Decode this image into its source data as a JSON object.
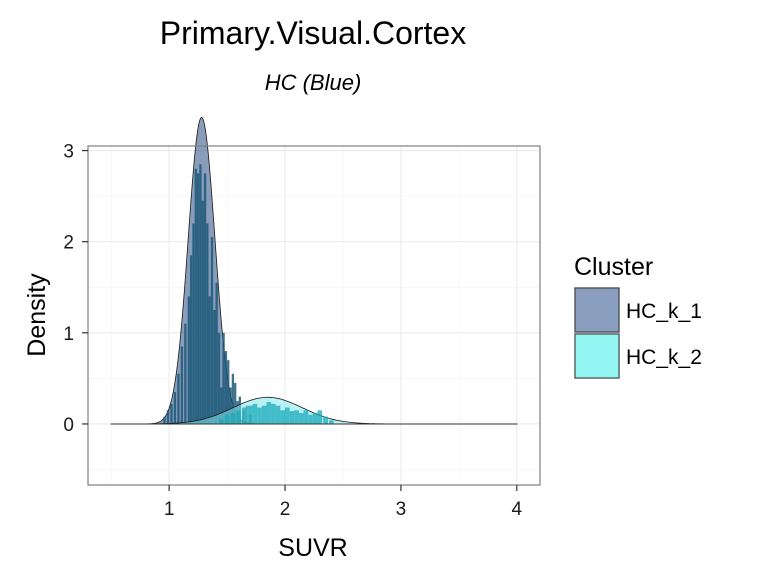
{
  "chart_data": {
    "type": "histogram_density",
    "title": "Primary.Visual.Cortex",
    "subtitle": "HC (Blue)",
    "xlabel": "SUVR",
    "ylabel": "Density",
    "xlim": [
      0.3,
      4.2
    ],
    "ylim": [
      -0.67,
      3.05
    ],
    "x_ticks": [
      1,
      2,
      3,
      4
    ],
    "y_ticks": [
      0,
      1,
      2,
      3
    ],
    "grid": true,
    "legend": {
      "title": "Cluster",
      "position": "right",
      "entries": [
        {
          "name": "HC_k_1",
          "color": "#8a9ebf"
        },
        {
          "name": "HC_k_2",
          "color": "#93f5f2"
        }
      ]
    },
    "colors": {
      "k1_bar": "#1c5978",
      "k1_density_fill": "#3a5a8a",
      "k2_bar": "#1aa9b8",
      "k2_density_fill": "#7ee8ec",
      "panel_border": "#7f7f7f",
      "grid": "#ebebeb"
    },
    "series": [
      {
        "name": "HC_k_1",
        "density": {
          "mean": 1.28,
          "sd": 0.115,
          "weight": 0.97
        },
        "histogram": [
          {
            "x": 0.96,
            "y": 0.08
          },
          {
            "x": 0.99,
            "y": 0.15
          },
          {
            "x": 1.02,
            "y": 0.22
          },
          {
            "x": 1.05,
            "y": 0.35
          },
          {
            "x": 1.08,
            "y": 0.55
          },
          {
            "x": 1.11,
            "y": 0.85
          },
          {
            "x": 1.14,
            "y": 1.1
          },
          {
            "x": 1.17,
            "y": 1.4
          },
          {
            "x": 1.19,
            "y": 1.85
          },
          {
            "x": 1.21,
            "y": 2.2
          },
          {
            "x": 1.23,
            "y": 2.8
          },
          {
            "x": 1.25,
            "y": 2.75
          },
          {
            "x": 1.27,
            "y": 2.85
          },
          {
            "x": 1.29,
            "y": 2.45
          },
          {
            "x": 1.31,
            "y": 2.75
          },
          {
            "x": 1.33,
            "y": 2.2
          },
          {
            "x": 1.35,
            "y": 1.4
          },
          {
            "x": 1.37,
            "y": 2.05
          },
          {
            "x": 1.39,
            "y": 1.25
          },
          {
            "x": 1.41,
            "y": 1.55
          },
          {
            "x": 1.43,
            "y": 1.0
          },
          {
            "x": 1.45,
            "y": 0.4
          },
          {
            "x": 1.47,
            "y": 1.0
          },
          {
            "x": 1.49,
            "y": 0.8
          },
          {
            "x": 1.51,
            "y": 0.7
          },
          {
            "x": 1.53,
            "y": 0.4
          },
          {
            "x": 1.55,
            "y": 0.55
          },
          {
            "x": 1.57,
            "y": 0.45
          },
          {
            "x": 1.59,
            "y": 0.25
          },
          {
            "x": 1.61,
            "y": 0.3
          },
          {
            "x": 1.64,
            "y": 0.15
          },
          {
            "x": 1.67,
            "y": 0.2
          },
          {
            "x": 1.7,
            "y": 0.1
          }
        ]
      },
      {
        "name": "HC_k_2",
        "density": {
          "mean": 1.85,
          "sd": 0.3,
          "weight": 0.22
        },
        "histogram": [
          {
            "x": 1.45,
            "y": 0.05
          },
          {
            "x": 1.5,
            "y": 0.1
          },
          {
            "x": 1.55,
            "y": 0.12
          },
          {
            "x": 1.6,
            "y": 0.15
          },
          {
            "x": 1.65,
            "y": 0.18
          },
          {
            "x": 1.7,
            "y": 0.2
          },
          {
            "x": 1.74,
            "y": 0.22
          },
          {
            "x": 1.78,
            "y": 0.18
          },
          {
            "x": 1.82,
            "y": 0.2
          },
          {
            "x": 1.86,
            "y": 0.24
          },
          {
            "x": 1.9,
            "y": 0.22
          },
          {
            "x": 1.94,
            "y": 0.2
          },
          {
            "x": 1.98,
            "y": 0.15
          },
          {
            "x": 2.02,
            "y": 0.18
          },
          {
            "x": 2.06,
            "y": 0.14
          },
          {
            "x": 2.1,
            "y": 0.15
          },
          {
            "x": 2.14,
            "y": 0.12
          },
          {
            "x": 2.18,
            "y": 0.15
          },
          {
            "x": 2.22,
            "y": 0.1
          },
          {
            "x": 2.26,
            "y": 0.12
          },
          {
            "x": 2.3,
            "y": 0.15
          },
          {
            "x": 2.35,
            "y": 0.08
          },
          {
            "x": 2.4,
            "y": 0.04
          }
        ]
      }
    ],
    "baseline_range": [
      0.5,
      4.0
    ]
  }
}
